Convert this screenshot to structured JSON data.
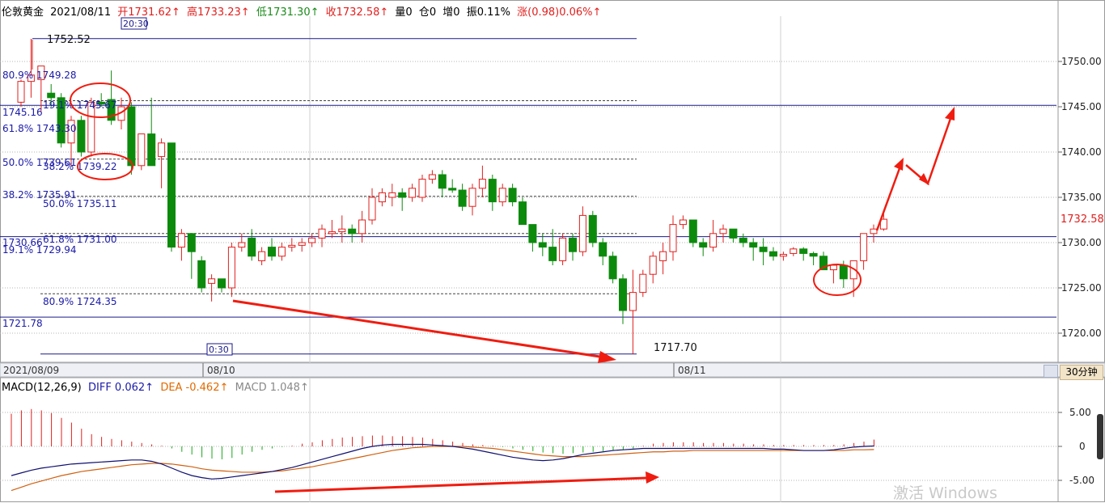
{
  "header": {
    "title": "伦敦黄金",
    "date": "2021/08/11",
    "open": "开1731.62↑",
    "high": "高1733.23↑",
    "low": "低1731.30↑",
    "close": "收1732.58↑",
    "volume": "量0",
    "position": "仓0",
    "increase": "增0",
    "amplitude": "振0.11%",
    "change": "涨(0.98)0.06%↑"
  },
  "timeframe": "30分钟",
  "watermark": "激活 Windows",
  "colors": {
    "up": "#e0201e",
    "down": "#0c8a0c",
    "fib_text": "#1a1aa8",
    "grid": "#b4b4b4",
    "solid_line": "#1a1a8a",
    "arrow": "#f01c10",
    "diff_line": "#101070",
    "dea_line": "#d06010"
  },
  "chart_data": [
    {
      "type": "candlestick",
      "title": "",
      "x_labels": [
        "2021/08/09",
        "08/10",
        "08/11"
      ],
      "y_ticks": [
        1720.0,
        1725.0,
        1730.0,
        1735.0,
        1740.0,
        1745.0,
        1750.0
      ],
      "ylim": [
        1716.5,
        1756
      ],
      "last_price": "1732.58",
      "high_label": "1752.52",
      "low_label": "1717.70",
      "time_marks": [
        "20:30",
        "0:30"
      ],
      "fib_labels": [
        {
          "text": "80.9% 1749.28",
          "price": 1749.28
        },
        {
          "text": "19.1% 1745.67",
          "price": 1745.67
        },
        {
          "text": "1745.16",
          "price": 1745.16
        },
        {
          "text": "61.8% 1743.30",
          "price": 1743.3
        },
        {
          "text": "50.0% 1739.61",
          "price": 1739.61
        },
        {
          "text": "38.2% 1739.22",
          "price": 1739.22
        },
        {
          "text": "38.2% 1735.91",
          "price": 1735.91
        },
        {
          "text": "50.0% 1735.11",
          "price": 1735.11
        },
        {
          "text": "1730.66",
          "price": 1730.66
        },
        {
          "text": "61.8% 1731.00",
          "price": 1731.0
        },
        {
          "text": "19.1% 1729.94",
          "price": 1729.94
        },
        {
          "text": "80.9% 1724.35",
          "price": 1724.35
        },
        {
          "text": "1721.78",
          "price": 1721.78
        }
      ],
      "solid_lines": [
        1752.52,
        1745.16,
        1730.66,
        1721.78,
        1717.7
      ],
      "dashed_lines": [
        1745.67,
        1739.22,
        1735.11,
        1731.0,
        1724.35
      ],
      "candles": [
        [
          1745.5,
          1748.0,
          1745.0,
          1747.8
        ],
        [
          1747.8,
          1752.5,
          1746.0,
          1748.5
        ],
        [
          1748.0,
          1749.5,
          1744.5,
          1749.5
        ],
        [
          1746.5,
          1747.5,
          1745.0,
          1746.0
        ],
        [
          1746.0,
          1746.5,
          1740.5,
          1741.0
        ],
        [
          1741.0,
          1744.0,
          1738.5,
          1743.5
        ],
        [
          1743.5,
          1744.0,
          1739.5,
          1740.0
        ],
        [
          1740.0,
          1746.0,
          1739.5,
          1745.5
        ],
        [
          1745.5,
          1746.5,
          1745.0,
          1745.3
        ],
        [
          1745.8,
          1749.0,
          1743.0,
          1743.5
        ],
        [
          1743.5,
          1746.0,
          1742.5,
          1745.0
        ],
        [
          1745.0,
          1745.5,
          1737.5,
          1738.5
        ],
        [
          1738.5,
          1742.0,
          1738.0,
          1742.0
        ],
        [
          1742.0,
          1746.0,
          1738.5,
          1738.5
        ],
        [
          1739.5,
          1741.5,
          1736.0,
          1741.0
        ],
        [
          1741.0,
          1741.0,
          1729.0,
          1729.5
        ],
        [
          1729.5,
          1731.5,
          1728.0,
          1731.0
        ],
        [
          1731.0,
          1731.0,
          1726.0,
          1729.0
        ],
        [
          1728.0,
          1728.5,
          1724.5,
          1725.0
        ],
        [
          1725.5,
          1726.5,
          1723.5,
          1726.0
        ],
        [
          1726.0,
          1726.0,
          1724.5,
          1725.0
        ],
        [
          1725.0,
          1730.0,
          1724.0,
          1729.5
        ],
        [
          1729.5,
          1731.0,
          1729.0,
          1730.0
        ],
        [
          1730.5,
          1731.5,
          1728.0,
          1728.5
        ],
        [
          1728.0,
          1729.5,
          1727.5,
          1729.0
        ],
        [
          1729.5,
          1730.5,
          1728.0,
          1728.5
        ],
        [
          1728.5,
          1730.0,
          1728.0,
          1729.5
        ],
        [
          1729.5,
          1730.5,
          1729.0,
          1729.7
        ],
        [
          1729.7,
          1730.5,
          1729.0,
          1730.0
        ],
        [
          1730.0,
          1731.0,
          1729.5,
          1730.5
        ],
        [
          1730.5,
          1732.0,
          1729.5,
          1731.5
        ],
        [
          1731.0,
          1732.5,
          1730.5,
          1731.2
        ],
        [
          1731.2,
          1733.0,
          1730.0,
          1731.5
        ],
        [
          1731.5,
          1732.0,
          1730.0,
          1731.0
        ],
        [
          1731.0,
          1733.5,
          1730.0,
          1732.5
        ],
        [
          1732.5,
          1736.0,
          1732.0,
          1735.0
        ],
        [
          1734.5,
          1736.0,
          1734.0,
          1735.5
        ],
        [
          1735.0,
          1736.5,
          1734.0,
          1735.5
        ],
        [
          1735.5,
          1736.0,
          1733.5,
          1735.0
        ],
        [
          1735.0,
          1736.5,
          1734.5,
          1736.0
        ],
        [
          1735.0,
          1737.5,
          1734.5,
          1737.0
        ],
        [
          1737.0,
          1738.0,
          1736.5,
          1737.5
        ],
        [
          1737.5,
          1738.0,
          1735.0,
          1736.0
        ],
        [
          1736.0,
          1737.0,
          1735.5,
          1735.8
        ],
        [
          1735.8,
          1736.5,
          1733.5,
          1734.0
        ],
        [
          1734.0,
          1736.5,
          1733.0,
          1736.0
        ],
        [
          1736.0,
          1738.5,
          1735.0,
          1737.0
        ],
        [
          1737.0,
          1737.5,
          1733.5,
          1734.5
        ],
        [
          1734.5,
          1736.5,
          1734.0,
          1736.0
        ],
        [
          1736.0,
          1736.5,
          1734.0,
          1734.5
        ],
        [
          1734.5,
          1735.0,
          1732.0,
          1732.0
        ],
        [
          1732.0,
          1732.0,
          1729.0,
          1730.0
        ],
        [
          1730.0,
          1731.0,
          1728.5,
          1729.5
        ],
        [
          1729.5,
          1731.5,
          1727.5,
          1728.0
        ],
        [
          1728.0,
          1731.0,
          1727.5,
          1730.5
        ],
        [
          1730.5,
          1731.0,
          1728.0,
          1729.0
        ],
        [
          1729.0,
          1734.0,
          1728.5,
          1733.0
        ],
        [
          1733.0,
          1733.5,
          1729.5,
          1730.0
        ],
        [
          1730.0,
          1730.5,
          1727.5,
          1728.5
        ],
        [
          1728.5,
          1729.0,
          1725.5,
          1726.0
        ],
        [
          1726.0,
          1726.5,
          1721.0,
          1722.5
        ],
        [
          1722.5,
          1727.0,
          1717.7,
          1724.5
        ],
        [
          1724.5,
          1727.0,
          1724.0,
          1726.5
        ],
        [
          1726.5,
          1729.0,
          1725.5,
          1728.5
        ],
        [
          1728.0,
          1730.0,
          1726.5,
          1729.0
        ],
        [
          1729.0,
          1733.0,
          1728.0,
          1732.0
        ],
        [
          1732.0,
          1733.0,
          1731.5,
          1732.5
        ],
        [
          1732.5,
          1732.5,
          1729.5,
          1730.0
        ],
        [
          1730.0,
          1730.5,
          1728.5,
          1729.5
        ],
        [
          1729.5,
          1732.5,
          1729.0,
          1731.0
        ],
        [
          1731.0,
          1732.0,
          1730.0,
          1731.5
        ],
        [
          1731.5,
          1731.5,
          1730.0,
          1730.5
        ],
        [
          1730.5,
          1731.0,
          1729.5,
          1730.0
        ],
        [
          1730.0,
          1730.5,
          1728.0,
          1729.5
        ],
        [
          1729.5,
          1730.5,
          1727.5,
          1729.0
        ],
        [
          1729.0,
          1729.5,
          1728.0,
          1728.5
        ],
        [
          1728.5,
          1729.0,
          1728.0,
          1728.7
        ],
        [
          1728.8,
          1729.5,
          1728.5,
          1729.3
        ],
        [
          1729.3,
          1729.5,
          1728.0,
          1728.8
        ],
        [
          1728.8,
          1729.0,
          1727.5,
          1728.5
        ],
        [
          1728.5,
          1729.0,
          1727.0,
          1727.0
        ],
        [
          1727.0,
          1727.5,
          1725.5,
          1727.5
        ],
        [
          1727.5,
          1728.0,
          1725.0,
          1726.0
        ],
        [
          1726.0,
          1728.0,
          1724.0,
          1728.0
        ],
        [
          1728.0,
          1731.0,
          1727.0,
          1731.0
        ],
        [
          1731.0,
          1732.0,
          1730.0,
          1731.5
        ],
        [
          1731.5,
          1733.2,
          1731.3,
          1732.58
        ]
      ],
      "annotations": [
        "red-circle-1745.67",
        "red-circle-1739.22",
        "red-circle-bottom",
        "red-arrow-down-trend",
        "red-zigzag-projection"
      ]
    },
    {
      "type": "macd",
      "title": "MACD(12,26,9)",
      "diff_label": "DIFF 0.062↑",
      "dea_label": "DEA -0.462↑",
      "macd_label": "MACD 1.048↑",
      "y_ticks": [
        "5.00",
        "0",
        "-5.00"
      ],
      "ylim": [
        -6.8,
        8.2
      ],
      "histogram": [
        4.8,
        5.3,
        5.5,
        5.3,
        4.9,
        4.2,
        3.5,
        2.6,
        1.8,
        1.4,
        1.1,
        0.9,
        0.7,
        0.5,
        0.3,
        0.1,
        -0.3,
        -0.8,
        -1.2,
        -1.6,
        -1.8,
        -1.9,
        -1.7,
        -1.2,
        -0.8,
        -0.5,
        -0.3,
        -0.1,
        0.1,
        0.4,
        0.6,
        0.9,
        1.1,
        1.3,
        1.4,
        1.5,
        1.6,
        1.6,
        1.5,
        1.5,
        1.4,
        1.3,
        1.1,
        0.9,
        0.7,
        0.5,
        0.3,
        0.2,
        0.1,
        -0.1,
        -0.3,
        -0.5,
        -0.7,
        -0.9,
        -1.0,
        -1.1,
        -1.0,
        -0.9,
        -0.8,
        -0.7,
        -0.6,
        -0.5,
        -0.3,
        0.1,
        0.4,
        0.5,
        0.6,
        0.6,
        0.6,
        0.5,
        0.5,
        0.5,
        0.4,
        0.4,
        0.3,
        0.3,
        0.2,
        0.2,
        0.2,
        0.2,
        0.2,
        0.2,
        0.2,
        0.3,
        0.5,
        0.7,
        1.0
      ],
      "diff": [
        -4.3,
        -3.9,
        -3.5,
        -3.2,
        -3.0,
        -2.8,
        -2.6,
        -2.5,
        -2.4,
        -2.3,
        -2.2,
        -2.1,
        -2.0,
        -2.0,
        -2.2,
        -2.6,
        -3.2,
        -3.8,
        -4.3,
        -4.6,
        -4.8,
        -4.7,
        -4.5,
        -4.3,
        -4.1,
        -3.9,
        -3.7,
        -3.4,
        -3.1,
        -2.7,
        -2.3,
        -1.9,
        -1.5,
        -1.1,
        -0.7,
        -0.3,
        0.0,
        0.2,
        0.3,
        0.3,
        0.3,
        0.3,
        0.2,
        0.1,
        0.0,
        -0.2,
        -0.4,
        -0.7,
        -1.0,
        -1.3,
        -1.6,
        -1.8,
        -2.0,
        -2.1,
        -2.0,
        -1.8,
        -1.5,
        -1.2,
        -1.0,
        -0.8,
        -0.6,
        -0.5,
        -0.4,
        -0.3,
        -0.3,
        -0.3,
        -0.3,
        -0.3,
        -0.3,
        -0.3,
        -0.3,
        -0.3,
        -0.3,
        -0.3,
        -0.3,
        -0.3,
        -0.4,
        -0.4,
        -0.5,
        -0.6,
        -0.6,
        -0.6,
        -0.5,
        -0.3,
        -0.1,
        0.0,
        0.062
      ],
      "dea": [
        -6.5,
        -6.0,
        -5.5,
        -5.1,
        -4.7,
        -4.3,
        -4.0,
        -3.7,
        -3.5,
        -3.3,
        -3.1,
        -2.9,
        -2.7,
        -2.6,
        -2.5,
        -2.5,
        -2.6,
        -2.8,
        -3.0,
        -3.3,
        -3.5,
        -3.6,
        -3.7,
        -3.8,
        -3.8,
        -3.8,
        -3.7,
        -3.6,
        -3.4,
        -3.2,
        -3.0,
        -2.7,
        -2.4,
        -2.1,
        -1.8,
        -1.5,
        -1.2,
        -0.9,
        -0.6,
        -0.4,
        -0.2,
        -0.1,
        0.0,
        0.0,
        0.0,
        0.0,
        -0.1,
        -0.2,
        -0.3,
        -0.5,
        -0.7,
        -0.9,
        -1.1,
        -1.3,
        -1.4,
        -1.5,
        -1.5,
        -1.5,
        -1.4,
        -1.3,
        -1.2,
        -1.1,
        -1.0,
        -0.9,
        -0.8,
        -0.8,
        -0.7,
        -0.7,
        -0.6,
        -0.6,
        -0.6,
        -0.6,
        -0.6,
        -0.6,
        -0.6,
        -0.6,
        -0.6,
        -0.6,
        -0.6,
        -0.6,
        -0.6,
        -0.6,
        -0.6,
        -0.6,
        -0.5,
        -0.5,
        -0.462
      ]
    }
  ]
}
